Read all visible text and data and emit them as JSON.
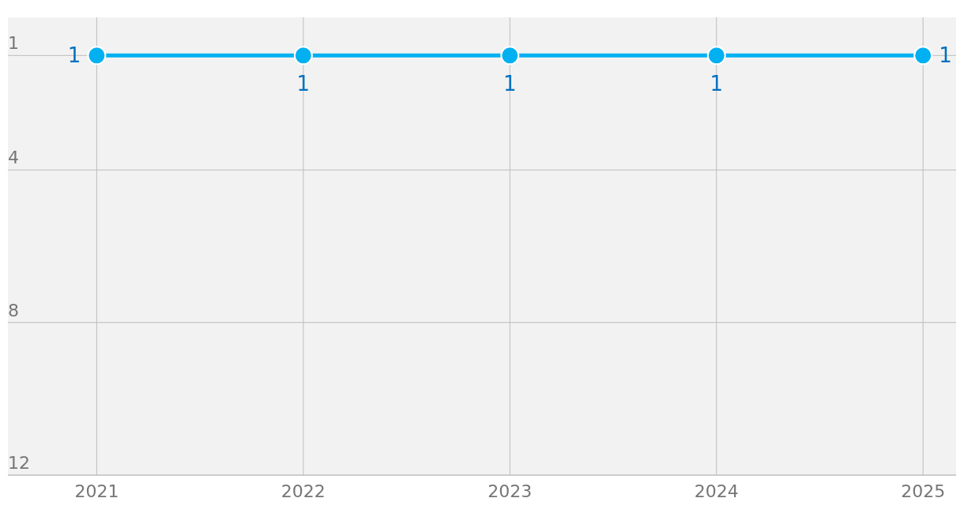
{
  "chart_data": {
    "type": "line",
    "x": [
      2021,
      2022,
      2023,
      2024,
      2025
    ],
    "series": [
      {
        "color": "#00b0f0",
        "values": [
          1,
          1,
          1,
          1,
          1
        ]
      }
    ],
    "xlim": [
      2020.57,
      2025.16
    ],
    "xticks": [
      2021,
      2022,
      2023,
      2024,
      2025
    ],
    "ylim": [
      12,
      0
    ],
    "yticks": [
      1,
      4,
      8,
      12
    ],
    "grid": true,
    "marker": "circle",
    "data_labels": true
  }
}
